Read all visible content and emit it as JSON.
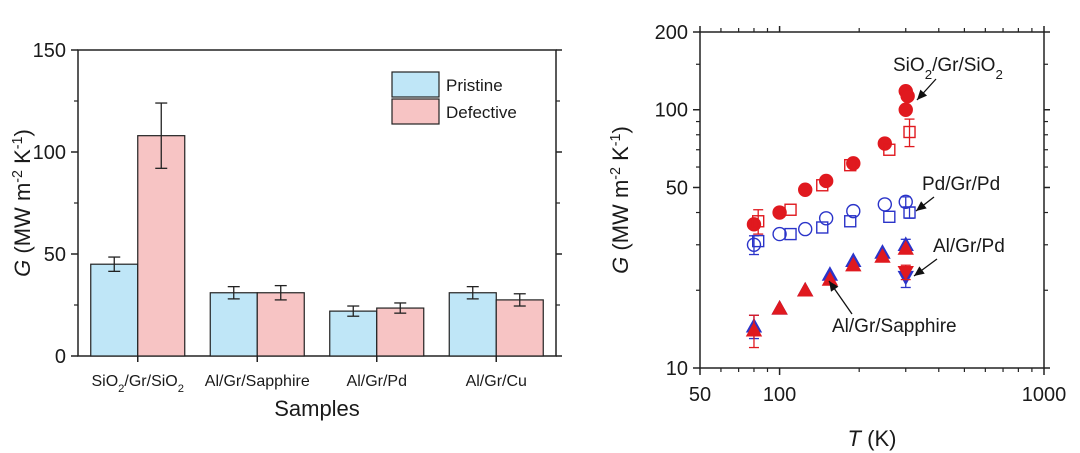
{
  "chart_data": [
    {
      "type": "bar",
      "xlabel": "Samples",
      "ylabel_parts": {
        "sym": "G",
        "unit": " (MW m",
        "e1": "-2",
        "unit2": " K",
        "e2": "-1",
        "close": ")"
      },
      "ylim": [
        0,
        150
      ],
      "yticks": [
        0,
        50,
        100,
        150
      ],
      "categories": [
        {
          "parts": [
            [
              "SiO",
              ""
            ],
            [
              "2",
              "sub"
            ],
            [
              "/Gr/SiO",
              ""
            ],
            [
              "2",
              "sub"
            ]
          ]
        },
        {
          "parts": [
            [
              "Al/Gr/Sapphire",
              ""
            ]
          ]
        },
        {
          "parts": [
            [
              "Al/Gr/Pd",
              ""
            ]
          ]
        },
        {
          "parts": [
            [
              "Al/Gr/Cu",
              ""
            ]
          ]
        }
      ],
      "series": [
        {
          "name": "Pristine",
          "color": "#bfe6f7",
          "values": [
            45,
            31,
            22,
            31
          ],
          "errors": [
            3.5,
            3,
            2.5,
            3
          ]
        },
        {
          "name": "Defective",
          "color": "#f7c4c4",
          "values": [
            108,
            31,
            23.5,
            27.5
          ],
          "errors": [
            16,
            3.5,
            2.5,
            3
          ]
        }
      ],
      "legend": "top-right"
    },
    {
      "type": "scatter",
      "xscale": "log",
      "yscale": "log",
      "xlabel": {
        "sym": "T",
        "unit": " (K)"
      },
      "ylabel_parts": {
        "sym": "G",
        "unit": " (MW m",
        "e1": "-2",
        "unit2": " K",
        "e2": "-1",
        "close": ")"
      },
      "xlim": [
        50,
        1000
      ],
      "ylim": [
        10,
        200
      ],
      "xticks": [
        50,
        100,
        1000
      ],
      "yticks": [
        10,
        50,
        100,
        200
      ],
      "series": [
        {
          "name": "SiO2/Gr/SiO2 pristine",
          "marker": "circle",
          "filled": true,
          "color": "#e0191f",
          "points": [
            [
              80,
              36
            ],
            [
              100,
              40
            ],
            [
              125,
              49
            ],
            [
              150,
              53
            ],
            [
              190,
              62
            ],
            [
              250,
              74
            ],
            [
              300,
              118
            ],
            [
              300,
              100
            ],
            [
              305,
              113
            ]
          ]
        },
        {
          "name": "SiO2/Gr/SiO2 defective",
          "marker": "square",
          "filled": false,
          "color": "#e0191f",
          "points": [
            [
              83,
              37
            ],
            [
              110,
              41
            ],
            [
              145,
              51
            ],
            [
              185,
              61
            ],
            [
              260,
              70
            ],
            [
              310,
              82
            ]
          ],
          "yerr": [
            4,
            0,
            0,
            0,
            0,
            10
          ]
        },
        {
          "name": "Pd/Gr/Pd pristine",
          "marker": "circle",
          "filled": false,
          "color": "#2b34c9",
          "points": [
            [
              80,
              30
            ],
            [
              100,
              33
            ],
            [
              125,
              34.5
            ],
            [
              150,
              38
            ],
            [
              190,
              40.5
            ],
            [
              250,
              43
            ],
            [
              300,
              44
            ]
          ],
          "yerr": [
            2.5,
            0,
            0,
            0,
            0,
            0,
            2
          ]
        },
        {
          "name": "Pd/Gr/Pd defective",
          "marker": "square",
          "filled": false,
          "color": "#2b34c9",
          "points": [
            [
              83,
              31
            ],
            [
              110,
              33
            ],
            [
              145,
              35
            ],
            [
              185,
              37
            ],
            [
              260,
              38.5
            ],
            [
              310,
              40
            ]
          ],
          "yerr": [
            0,
            0,
            0,
            0,
            0,
            2
          ]
        },
        {
          "name": "Al/Gr/Pd",
          "marker": "triangle-up",
          "filled": true,
          "color": "#2b34c9",
          "points": [
            [
              80,
              14.5
            ],
            [
              100,
              17
            ],
            [
              125,
              20
            ],
            [
              155,
              23
            ],
            [
              190,
              26
            ],
            [
              245,
              28
            ],
            [
              300,
              30
            ]
          ],
          "yerr": [
            1.5,
            0,
            0,
            0,
            0,
            0,
            1.5
          ]
        },
        {
          "name": "Al/Gr/Sapphire",
          "marker": "triangle-up",
          "filled": true,
          "color": "#e0191f",
          "points": [
            [
              80,
              14
            ],
            [
              100,
              17
            ],
            [
              125,
              20
            ],
            [
              155,
              22
            ],
            [
              190,
              25
            ],
            [
              245,
              27
            ],
            [
              300,
              29
            ]
          ],
          "yerr": [
            2,
            0,
            0,
            0,
            0,
            0,
            0
          ]
        },
        {
          "name": "Al/Gr/Cu",
          "marker": "triangle-down",
          "filled": true,
          "color": "#2b34c9",
          "points": [
            [
              300,
              22.5
            ]
          ],
          "yerr": [
            2
          ]
        },
        {
          "name": "Al/Gr/Cu defective",
          "marker": "triangle-down",
          "filled": true,
          "color": "#e0191f",
          "points": [
            [
              300,
              23.5
            ]
          ],
          "yerr": [
            1.5
          ]
        }
      ],
      "annotations": [
        {
          "id": "sio2",
          "parts": [
            [
              "SiO",
              ""
            ],
            [
              "2",
              "sub"
            ],
            [
              "/Gr/SiO",
              ""
            ],
            [
              "2",
              "sub"
            ]
          ]
        },
        {
          "id": "pd",
          "parts": [
            [
              "Pd/Gr/Pd",
              ""
            ]
          ]
        },
        {
          "id": "alpd",
          "parts": [
            [
              "Al/Gr/Pd",
              ""
            ]
          ]
        },
        {
          "id": "alsap",
          "parts": [
            [
              "Al/Gr/Sapphire",
              ""
            ]
          ]
        }
      ]
    }
  ]
}
